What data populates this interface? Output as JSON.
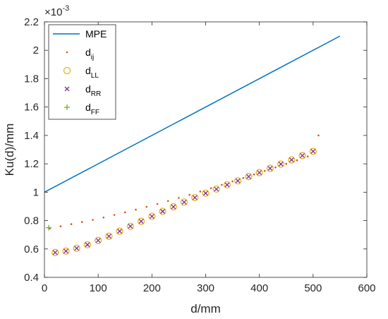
{
  "chart_data": {
    "type": "line",
    "xlabel": "d/mm",
    "ylabel": "Ku(d)/mm",
    "y_exponent_label": "×10",
    "y_exponent": "-3",
    "xlim": [
      0,
      600
    ],
    "ylim": [
      0.4,
      2.2
    ],
    "x_ticks": [
      "0",
      "100",
      "200",
      "300",
      "400",
      "500",
      "600"
    ],
    "y_ticks": [
      "0.4",
      "0.6",
      "0.8",
      "1",
      "1.2",
      "1.4",
      "1.6",
      "1.8",
      "2",
      "2.2"
    ],
    "grid": false,
    "legend_position": "top-left",
    "series": [
      {
        "name": "MPE",
        "base": "MPE",
        "sub": "",
        "style": "line",
        "color": "#0072BD",
        "x": [
          0,
          550
        ],
        "y": [
          1.0,
          2.1
        ]
      },
      {
        "name": "d_ij",
        "base": "d",
        "sub": "ij",
        "style": "dot",
        "color": "#D95319",
        "x": [
          10,
          30,
          50,
          70,
          90,
          110,
          130,
          150,
          170,
          190,
          210,
          230,
          250,
          270,
          290,
          310,
          330,
          350,
          370,
          390,
          410,
          430,
          450,
          470,
          490,
          510
        ],
        "y": [
          0.745,
          0.76,
          0.775,
          0.79,
          0.805,
          0.822,
          0.84,
          0.858,
          0.877,
          0.897,
          0.917,
          0.938,
          0.96,
          0.982,
          1.005,
          1.028,
          1.052,
          1.076,
          1.1,
          1.125,
          1.15,
          1.175,
          1.2,
          1.225,
          1.252,
          1.4
        ]
      },
      {
        "name": "d_LL",
        "base": "d",
        "sub": "LL",
        "style": "circle",
        "color": "#EDB120",
        "x": [
          20,
          40,
          60,
          80,
          100,
          120,
          140,
          160,
          180,
          200,
          220,
          240,
          260,
          280,
          300,
          320,
          340,
          360,
          380,
          400,
          420,
          440,
          460,
          480,
          500
        ],
        "y": [
          0.575,
          0.585,
          0.605,
          0.63,
          0.66,
          0.69,
          0.725,
          0.76,
          0.795,
          0.83,
          0.865,
          0.897,
          0.93,
          0.962,
          0.993,
          1.022,
          1.052,
          1.08,
          1.11,
          1.138,
          1.168,
          1.198,
          1.228,
          1.258,
          1.288
        ]
      },
      {
        "name": "d_RR",
        "base": "d",
        "sub": "RR",
        "style": "cross",
        "color": "#7E2F8E",
        "x": [
          20,
          40,
          60,
          80,
          100,
          120,
          140,
          160,
          180,
          200,
          220,
          240,
          260,
          280,
          300,
          320,
          340,
          360,
          380,
          400,
          420,
          440,
          460,
          480,
          500
        ],
        "y": [
          0.575,
          0.585,
          0.605,
          0.63,
          0.66,
          0.69,
          0.725,
          0.76,
          0.795,
          0.83,
          0.865,
          0.897,
          0.93,
          0.962,
          0.993,
          1.022,
          1.052,
          1.08,
          1.11,
          1.138,
          1.168,
          1.198,
          1.228,
          1.258,
          1.288
        ]
      },
      {
        "name": "d_FF",
        "base": "d",
        "sub": "FF",
        "style": "plus",
        "color": "#77AC30",
        "x": [
          8
        ],
        "y": [
          0.75
        ]
      }
    ]
  }
}
